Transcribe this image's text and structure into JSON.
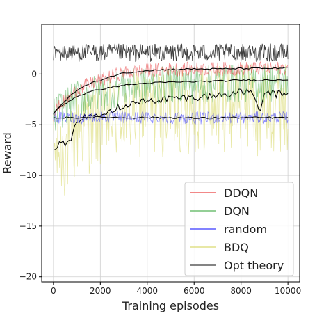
{
  "chart_data": {
    "type": "line",
    "xlabel": "Training episodes",
    "ylabel": "Reward",
    "xlim": [
      -500,
      10500
    ],
    "ylim": [
      -20.5,
      4.9
    ],
    "xticks": [
      0,
      2000,
      4000,
      6000,
      8000,
      10000
    ],
    "yticks": [
      -20,
      -15,
      -10,
      -5,
      0
    ],
    "grid": true,
    "legend_position": "lower-right",
    "colors": {
      "DDQN": "#e8393a",
      "DQN": "#4caf50",
      "random": "#2f2fff",
      "BDQ": "#d8d86a",
      "Opt theory": "#333333",
      "smoothed": "#000000"
    },
    "series": [
      {
        "name": "DDQN",
        "x": [
          0,
          200,
          500,
          1000,
          1500,
          2000,
          2500,
          3000,
          4000,
          5000,
          6000,
          7000,
          8000,
          9000,
          10000
        ],
        "values": [
          -4.0,
          -3.3,
          -2.6,
          -1.6,
          -1.0,
          -0.6,
          -0.2,
          0.1,
          0.35,
          0.45,
          0.5,
          0.5,
          0.55,
          0.55,
          0.6
        ],
        "band": 0.7
      },
      {
        "name": "DQN",
        "x": [
          0,
          200,
          500,
          1000,
          1500,
          2000,
          2500,
          3000,
          4000,
          5000,
          6000,
          7000,
          8000,
          9000,
          10000
        ],
        "values": [
          -4.0,
          -3.4,
          -2.9,
          -2.2,
          -1.8,
          -1.5,
          -1.3,
          -1.1,
          -0.9,
          -0.8,
          -0.75,
          -0.7,
          -0.6,
          -0.6,
          -0.55
        ],
        "band": 1.6
      },
      {
        "name": "random",
        "x": [
          0,
          1000,
          2000,
          3000,
          4000,
          5000,
          6000,
          7000,
          8000,
          9000,
          10000
        ],
        "values": [
          -4.3,
          -4.3,
          -4.25,
          -4.3,
          -4.3,
          -4.3,
          -4.35,
          -4.3,
          -4.3,
          -4.3,
          -4.3
        ],
        "band": 0.6
      },
      {
        "name": "BDQ",
        "x": [
          0,
          200,
          500,
          700,
          900,
          1000,
          1500,
          2000,
          2500,
          3000,
          3500,
          4000,
          5000,
          6000,
          7000,
          8000,
          8500,
          8800,
          9000,
          9500,
          10000
        ],
        "values": [
          -7.2,
          -7.0,
          -6.8,
          -6.9,
          -5.5,
          -4.5,
          -4.2,
          -3.8,
          -3.5,
          -3.1,
          -2.8,
          -2.7,
          -2.4,
          -2.3,
          -2.1,
          -1.8,
          -1.7,
          -4.2,
          -1.8,
          -2.0,
          -1.9
        ],
        "band": 3.0
      },
      {
        "name": "Opt theory",
        "x": [
          0,
          10000
        ],
        "values": [
          2.1,
          2.1
        ],
        "band": 0.9
      }
    ]
  }
}
